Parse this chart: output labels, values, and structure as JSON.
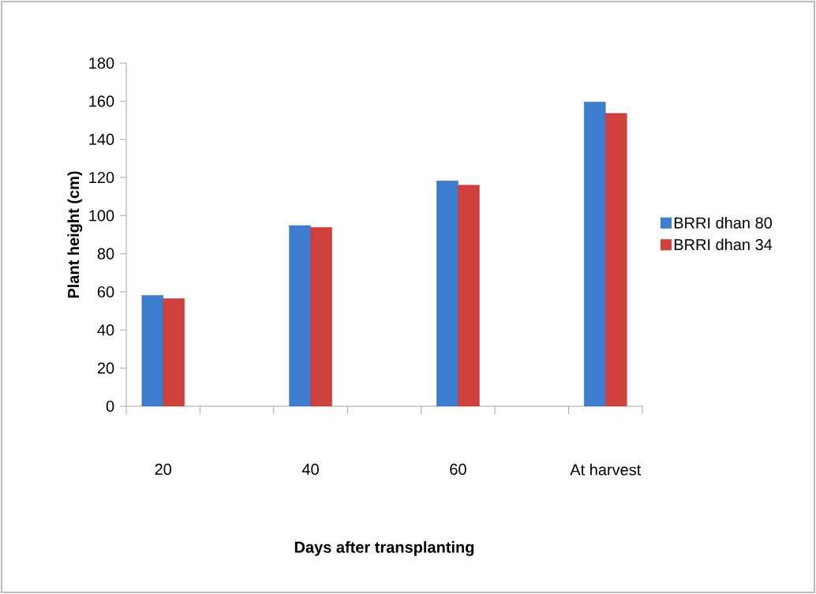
{
  "chart_data": {
    "type": "bar",
    "categories": [
      "20",
      null,
      "40",
      null,
      "60",
      null,
      "At harvest"
    ],
    "series": [
      {
        "name": "BRRI dhan 80",
        "color": "#3c7dd0",
        "values": [
          58.1,
          null,
          94.8,
          null,
          118.2,
          null,
          159.6
        ]
      },
      {
        "name": "BRRI dhan 34",
        "color": "#d0403c",
        "values": [
          56.5,
          null,
          93.8,
          null,
          116.0,
          null,
          153.7
        ]
      }
    ],
    "xlabel": "Days after transplanting",
    "ylabel": "Plant height (cm)",
    "ylim": [
      0,
      180
    ],
    "yticks": [
      0,
      20,
      40,
      60,
      80,
      100,
      120,
      140,
      160,
      180
    ],
    "legend": "right"
  }
}
